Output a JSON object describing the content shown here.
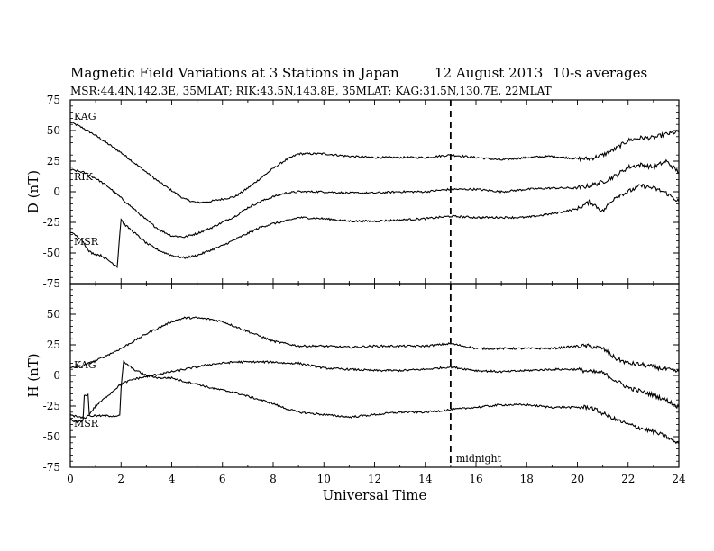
{
  "header": {
    "title": "Magnetic Field Variations at 3 Stations in Japan",
    "date": "12  August  2013",
    "averaging": "10-s averages",
    "stations_line": "MSR:44.4N,142.3E, 35MLAT;   RIK:43.5N,143.8E, 35MLAT;   KAG:31.5N,130.7E, 22MLAT"
  },
  "chart_data": [
    {
      "type": "line",
      "panel": "D",
      "ylabel": "D (nT)",
      "ylim": [
        -75,
        75
      ],
      "yticks": [
        -75,
        -50,
        -25,
        0,
        25,
        50,
        75
      ],
      "xlim": [
        0,
        24
      ],
      "grid": false,
      "series": [
        {
          "name": "KAG",
          "x": [
            0,
            0.5,
            1,
            1.5,
            2,
            2.5,
            3,
            3.5,
            4,
            4.5,
            5,
            5.5,
            6,
            6.5,
            7,
            7.5,
            8,
            8.5,
            9,
            10,
            11,
            12,
            13,
            14,
            15,
            16,
            17,
            18,
            19,
            20,
            20.5,
            21,
            21.5,
            22,
            22.5,
            23,
            23.5,
            24
          ],
          "y": [
            57,
            52,
            46,
            39,
            32,
            24,
            16,
            8,
            1,
            -6,
            -9,
            -8,
            -6,
            -4,
            3,
            11,
            19,
            26,
            31,
            31,
            29,
            28,
            28,
            28,
            30,
            28,
            26,
            28,
            29,
            27,
            27,
            30,
            35,
            42,
            44,
            44,
            47,
            49
          ]
        },
        {
          "name": "RIK",
          "x": [
            0,
            0.5,
            1,
            1.5,
            2,
            2.5,
            3,
            3.5,
            4,
            4.5,
            5,
            5.5,
            6,
            6.5,
            7,
            7.5,
            8,
            8.5,
            9,
            10,
            11,
            12,
            13,
            14,
            15,
            16,
            17,
            18,
            19,
            20,
            20.5,
            21,
            21.5,
            22,
            22.5,
            23,
            23.5,
            24
          ],
          "y": [
            18,
            16,
            11,
            4,
            -5,
            -14,
            -23,
            -31,
            -36,
            -37,
            -34,
            -30,
            -25,
            -20,
            -13,
            -8,
            -4,
            -1,
            0,
            0,
            -1,
            -1,
            0,
            0,
            2,
            2,
            0,
            2,
            3,
            3,
            5,
            8,
            13,
            20,
            22,
            20,
            25,
            16
          ]
        },
        {
          "name": "MSR",
          "x": [
            0,
            0.4,
            0.55,
            0.7,
            0.85,
            1.2,
            1.5,
            1.85,
            2,
            2.1,
            2.5,
            3,
            3.5,
            4,
            4.5,
            5,
            5.5,
            6,
            6.5,
            7,
            7.5,
            8,
            8.5,
            9,
            10,
            11,
            12,
            13,
            14,
            15,
            16,
            17,
            18,
            19,
            20,
            20.5,
            21,
            21.5,
            22,
            22.5,
            23,
            23.5,
            24
          ],
          "y": [
            -33,
            -38,
            -42,
            -48,
            -50,
            -52,
            -56,
            -61,
            -22,
            -26,
            -33,
            -42,
            -48,
            -52,
            -54,
            -52,
            -48,
            -44,
            -39,
            -34,
            -29,
            -26,
            -24,
            -21,
            -22,
            -24,
            -24,
            -23,
            -22,
            -20,
            -21,
            -21,
            -21,
            -18,
            -14,
            -8,
            -16,
            -4,
            0,
            5,
            3,
            -1,
            -8
          ]
        }
      ],
      "annotations": [
        "KAG",
        "RIK",
        "MSR"
      ]
    },
    {
      "type": "line",
      "panel": "H",
      "ylabel": "H (nT)",
      "xlabel": "Universal Time",
      "ylim": [
        -75,
        75
      ],
      "yticks": [
        -75,
        -50,
        -25,
        0,
        25,
        50,
        75
      ],
      "xlim": [
        0,
        24
      ],
      "xticks": [
        0,
        2,
        4,
        6,
        8,
        10,
        12,
        14,
        16,
        18,
        20,
        22,
        24
      ],
      "grid": false,
      "series": [
        {
          "name": "KAG",
          "x": [
            0,
            0.5,
            1,
            1.5,
            2,
            2.5,
            3,
            3.5,
            4,
            4.5,
            5,
            5.5,
            6,
            6.5,
            7,
            7.5,
            8,
            8.5,
            9,
            10,
            11,
            12,
            13,
            14,
            15,
            16,
            17,
            18,
            19,
            20,
            20.5,
            21,
            21.5,
            22,
            22.5,
            23,
            23.5,
            24
          ],
          "y": [
            6,
            8,
            12,
            17,
            22,
            28,
            34,
            39,
            44,
            47,
            47,
            46,
            44,
            40,
            36,
            32,
            28,
            26,
            24,
            24,
            23,
            24,
            24,
            24,
            26,
            22,
            22,
            22,
            22,
            24,
            24,
            22,
            14,
            10,
            9,
            7,
            5,
            3
          ]
        },
        {
          "name": "RIK",
          "x": [
            0,
            0.3,
            0.55,
            0.7,
            1,
            1.5,
            2,
            2.5,
            3,
            3.5,
            4,
            4.5,
            5,
            5.5,
            6,
            6.5,
            7,
            7.5,
            8,
            8.5,
            9,
            10,
            11,
            12,
            13,
            14,
            15,
            16,
            17,
            18,
            19,
            20,
            20.5,
            21,
            21.5,
            22,
            22.5,
            23,
            23.5,
            24
          ],
          "y": [
            -32,
            -34,
            -35,
            -33,
            -25,
            -16,
            -7,
            -3,
            -1,
            1,
            3,
            5,
            7,
            9,
            10,
            11,
            11,
            11,
            11,
            10,
            10,
            6,
            5,
            4,
            4,
            5,
            7,
            4,
            3,
            4,
            5,
            5,
            3,
            2,
            -4,
            -10,
            -13,
            -16,
            -20,
            -26
          ]
        },
        {
          "name": "MSR",
          "x": [
            0,
            0.3,
            0.5,
            0.55,
            0.7,
            0.75,
            1,
            1.5,
            1.95,
            2,
            2.1,
            2.5,
            3,
            3.5,
            4,
            4.5,
            5,
            5.5,
            6,
            6.5,
            7,
            7.5,
            8,
            8.5,
            9,
            10,
            11,
            12,
            13,
            14,
            15,
            16,
            17,
            18,
            19,
            20,
            20.5,
            21,
            21.5,
            22,
            22.5,
            23,
            23.5,
            24
          ],
          "y": [
            -36,
            -38,
            -37,
            -16,
            -16,
            -33,
            -33,
            -33,
            -33,
            -10,
            11,
            5,
            0,
            -2,
            -2,
            -5,
            -7,
            -10,
            -12,
            -14,
            -17,
            -20,
            -23,
            -27,
            -30,
            -32,
            -34,
            -32,
            -30,
            -30,
            -28,
            -26,
            -24,
            -24,
            -26,
            -26,
            -26,
            -31,
            -36,
            -40,
            -43,
            -46,
            -50,
            -56
          ]
        }
      ],
      "annotations": [
        "KAG",
        "MSR"
      ]
    }
  ],
  "midnight_marker": {
    "x": 15,
    "label": "midnight"
  }
}
